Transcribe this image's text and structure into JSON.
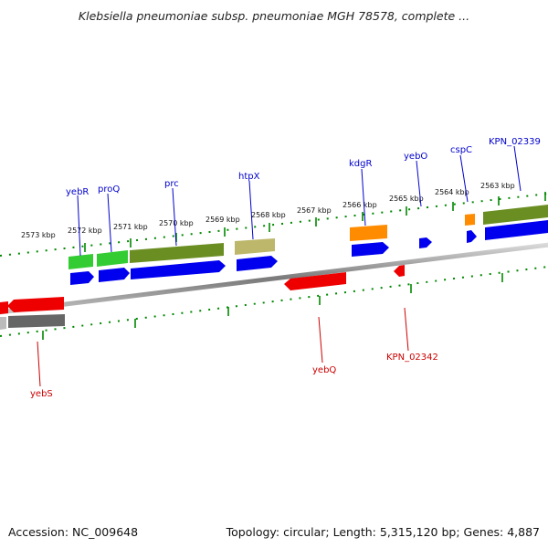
{
  "header": {
    "title": "Klebsiella pneumoniae subsp. pneumoniae MGH 78578, complete ..."
  },
  "scale": {
    "labels": [
      "2573 kbp",
      "2572 kbp",
      "2571 kbp",
      "2570 kbp",
      "2569 kbp",
      "2568 kbp",
      "2567 kbp",
      "2566 kbp",
      "2565 kbp",
      "2564 kbp",
      "2563 kbp"
    ]
  },
  "genes_forward": [
    {
      "name": "yebR"
    },
    {
      "name": "proQ"
    },
    {
      "name": "prc"
    },
    {
      "name": "htpX"
    },
    {
      "name": "kdgR"
    },
    {
      "name": "yebO"
    },
    {
      "name": "cspC"
    },
    {
      "name": "KPN_02339"
    }
  ],
  "genes_reverse": [
    {
      "name": "yebS"
    },
    {
      "name": "yebQ"
    },
    {
      "name": "KPN_02342"
    }
  ],
  "footer": {
    "accession": "Accession: NC_009648",
    "topology": "Topology: circular; Length: 5,315,120 bp; Genes: 4,887"
  },
  "colors": {
    "forward_label": "#0000cc",
    "reverse_label": "#cc0000",
    "tick": "#008800",
    "cds_forward": "#0000ee",
    "cds_reverse": "#ee0000",
    "gene_green": "#33cc33",
    "gene_olive": "#6b8e23",
    "gene_khaki": "#bdb76b",
    "gene_orange": "#ff8c00",
    "gene_gray": "#666666",
    "backbone": "#808080"
  }
}
